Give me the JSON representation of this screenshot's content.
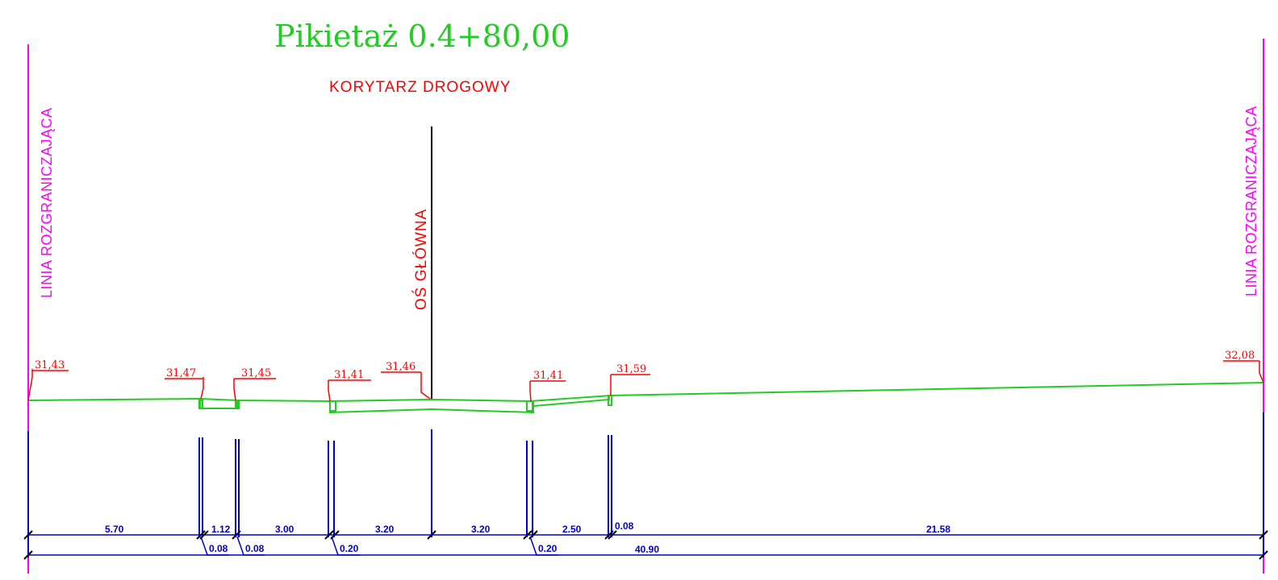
{
  "title": "Pikietaż  0.4+80,00",
  "corridor_label": "KORYTARZ DROGOWY",
  "main_axis_label": "OŚ GŁÓWNA",
  "boundary_left_label": "LINIA  ROZGRANICZAJĄCA",
  "boundary_right_label": "LINIA  ROZGRANICZAJĄCA",
  "elevations": [
    "31,43",
    "31,47",
    "31,45",
    "31,41",
    "31,46",
    "31,41",
    "31,59",
    "32,08"
  ],
  "dims_top": [
    "5.70",
    "1.12",
    "3.00",
    "3.20",
    "3.20",
    "2.50",
    "0.08",
    "21.58"
  ],
  "dims_sub": [
    "0.08",
    "0.08",
    "0.20",
    "0.20"
  ],
  "dim_total": "40.90",
  "colors": {
    "title": "#22cc22",
    "annotation": "#ff0000",
    "boundary": "#ff00ff",
    "terrain": "#22cc22",
    "dimension": "#0000cc",
    "axis": "#000000"
  }
}
